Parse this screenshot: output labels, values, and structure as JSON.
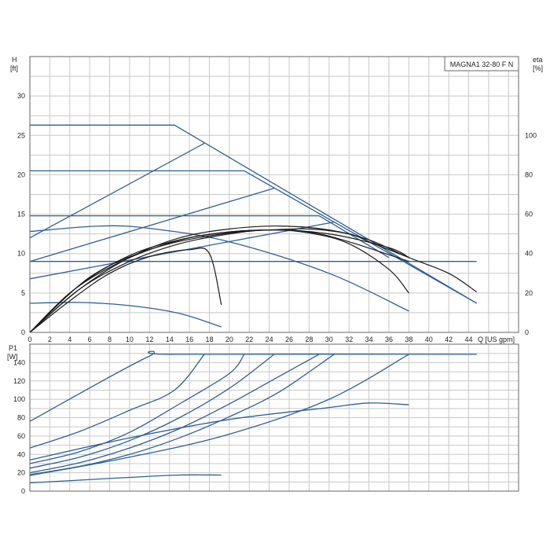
{
  "colors": {
    "pump_curve": "#2d5f96",
    "efficiency": "#1a1a1a",
    "grid": "#c8c8c8",
    "frame": "#666666",
    "text": "#222222"
  },
  "chart_data": [
    {
      "type": "line",
      "id": "head",
      "model_label": "MAGNA1 32-80 F N",
      "ylabel_main": "H",
      "ylabel_unit": "[ft]",
      "y2label_main": "eta",
      "y2label_unit": "[%]",
      "xlabel": "Q [US gpm]",
      "xlim": [
        0,
        49
      ],
      "ylim": [
        0,
        35
      ],
      "y2lim": [
        0,
        140
      ],
      "x_ticks": [
        0,
        2,
        4,
        6,
        8,
        10,
        12,
        14,
        16,
        18,
        20,
        22,
        24,
        26,
        28,
        30,
        32,
        34,
        36,
        38,
        40,
        42,
        44
      ],
      "y_ticks": [
        0,
        5,
        10,
        15,
        20,
        25,
        30
      ],
      "y2_ticks": [
        0,
        20,
        40,
        60,
        80,
        100
      ],
      "grid": true,
      "series": [
        {
          "role": "pump",
          "values": [
            [
              0,
              26.3
            ],
            [
              14.5,
              26.3
            ],
            [
              44.8,
              3.7
            ]
          ]
        },
        {
          "role": "pump",
          "values": [
            [
              0,
              20.5
            ],
            [
              21.5,
              20.5
            ],
            [
              44.8,
              3.7
            ]
          ]
        },
        {
          "role": "pump",
          "values": [
            [
              0,
              14.8
            ],
            [
              29,
              14.8
            ],
            [
              36,
              9.5
            ]
          ]
        },
        {
          "role": "pump",
          "values": [
            [
              0,
              9
            ],
            [
              44.8,
              9
            ]
          ]
        },
        {
          "role": "pump",
          "values": [
            [
              0,
              12.8
            ],
            [
              7,
              13.5
            ],
            [
              12,
              13.2
            ],
            [
              20,
              11.5
            ],
            [
              30,
              7.5
            ],
            [
              38,
              2.7
            ]
          ]
        },
        {
          "role": "pump",
          "values": [
            [
              0,
              3.7
            ],
            [
              5,
              3.8
            ],
            [
              10,
              3.4
            ],
            [
              15,
              2.4
            ],
            [
              19.2,
              0.7
            ]
          ]
        },
        {
          "role": "pump",
          "values": [
            [
              0,
              12
            ],
            [
              17.5,
              24
            ]
          ]
        },
        {
          "role": "pump",
          "values": [
            [
              0,
              9
            ],
            [
              24.5,
              18.3
            ]
          ]
        },
        {
          "role": "pump",
          "values": [
            [
              0,
              6.8
            ],
            [
              30.5,
              14
            ]
          ]
        },
        {
          "role": "efficiency",
          "values": [
            [
              0,
              0
            ],
            [
              4,
              16
            ],
            [
              8,
              30
            ],
            [
              12,
              38.5
            ],
            [
              16,
              42
            ],
            [
              18,
              40
            ],
            [
              19.2,
              14
            ]
          ]
        },
        {
          "role": "efficiency",
          "values": [
            [
              0,
              0
            ],
            [
              5,
              22
            ],
            [
              10,
              36
            ],
            [
              15,
              45
            ],
            [
              20,
              50
            ],
            [
              24,
              52
            ],
            [
              28,
              50.5
            ],
            [
              32,
              45
            ],
            [
              36,
              32
            ],
            [
              38,
              20
            ]
          ]
        },
        {
          "role": "efficiency",
          "values": [
            [
              0,
              0
            ],
            [
              5,
              22
            ],
            [
              10,
              38
            ],
            [
              15,
              48
            ],
            [
              20,
              52.5
            ],
            [
              25,
              54
            ],
            [
              30,
              52
            ],
            [
              34,
              47
            ],
            [
              38,
              38
            ],
            [
              42,
              30
            ],
            [
              44.8,
              20.5
            ]
          ]
        },
        {
          "role": "efficiency",
          "values": [
            [
              0,
              0
            ],
            [
              5,
              24
            ],
            [
              10,
              39
            ],
            [
              15,
              47
            ],
            [
              20,
              51
            ],
            [
              24,
              52
            ],
            [
              28,
              52.5
            ],
            [
              32,
              50
            ],
            [
              34,
              46
            ],
            [
              36,
              42
            ],
            [
              38,
              38
            ]
          ]
        },
        {
          "role": "efficiency",
          "values": [
            [
              0,
              0
            ],
            [
              6,
              28
            ],
            [
              12,
              42
            ],
            [
              18,
              49
            ],
            [
              24,
              52
            ],
            [
              30,
              50
            ],
            [
              36,
              43
            ],
            [
              38,
              38
            ]
          ]
        },
        {
          "role": "efficiency",
          "values": [
            [
              0,
              0
            ],
            [
              4,
              20
            ],
            [
              8,
              33
            ],
            [
              12,
              42
            ],
            [
              16,
              48
            ],
            [
              20,
              51
            ],
            [
              24,
              52
            ],
            [
              28,
              51
            ],
            [
              32,
              46
            ],
            [
              38,
              36
            ]
          ]
        }
      ]
    },
    {
      "type": "line",
      "id": "power",
      "ylabel_main": "P1",
      "ylabel_unit": "[W]",
      "xlim": [
        0,
        49
      ],
      "ylim": [
        0,
        160
      ],
      "y_ticks": [
        0,
        20,
        40,
        60,
        80,
        100,
        120,
        140
      ],
      "grid": true,
      "series": [
        {
          "values": [
            [
              0,
              76
            ],
            [
              11.8,
              146
            ],
            [
              14.5,
              149
            ],
            [
              44.8,
              149
            ]
          ]
        },
        {
          "values": [
            [
              0,
              47
            ],
            [
              5,
              65
            ],
            [
              10,
              88
            ],
            [
              14.5,
              110
            ],
            [
              17.5,
              149
            ]
          ]
        },
        {
          "values": [
            [
              0,
              30
            ],
            [
              5,
              43
            ],
            [
              10,
              64
            ],
            [
              15,
              95
            ],
            [
              20,
              128
            ],
            [
              21.5,
              149
            ]
          ]
        },
        {
          "values": [
            [
              0,
              25
            ],
            [
              5,
              37
            ],
            [
              10,
              55
            ],
            [
              15,
              80
            ],
            [
              20,
              112
            ],
            [
              24.5,
              149
            ]
          ]
        },
        {
          "values": [
            [
              0,
              20
            ],
            [
              5,
              31
            ],
            [
              10,
              47
            ],
            [
              15,
              68
            ],
            [
              20,
              95
            ],
            [
              25,
              125
            ],
            [
              29,
              149
            ]
          ]
        },
        {
          "values": [
            [
              0,
              18
            ],
            [
              5,
              27
            ],
            [
              10,
              40
            ],
            [
              15,
              58
            ],
            [
              20,
              81
            ],
            [
              25,
              108
            ],
            [
              30.5,
              149
            ]
          ]
        },
        {
          "values": [
            [
              0,
              17
            ],
            [
              10,
              37
            ],
            [
              20,
              62
            ],
            [
              30,
              100
            ],
            [
              38,
              149
            ]
          ]
        },
        {
          "values": [
            [
              0,
              34
            ],
            [
              10,
              58
            ],
            [
              20,
              78
            ],
            [
              30,
              91
            ],
            [
              34,
              96
            ],
            [
              38,
              94
            ]
          ]
        },
        {
          "values": [
            [
              0,
              9
            ],
            [
              5,
              12
            ],
            [
              10,
              15
            ],
            [
              15,
              17.5
            ],
            [
              19.2,
              17.5
            ]
          ]
        }
      ]
    }
  ]
}
